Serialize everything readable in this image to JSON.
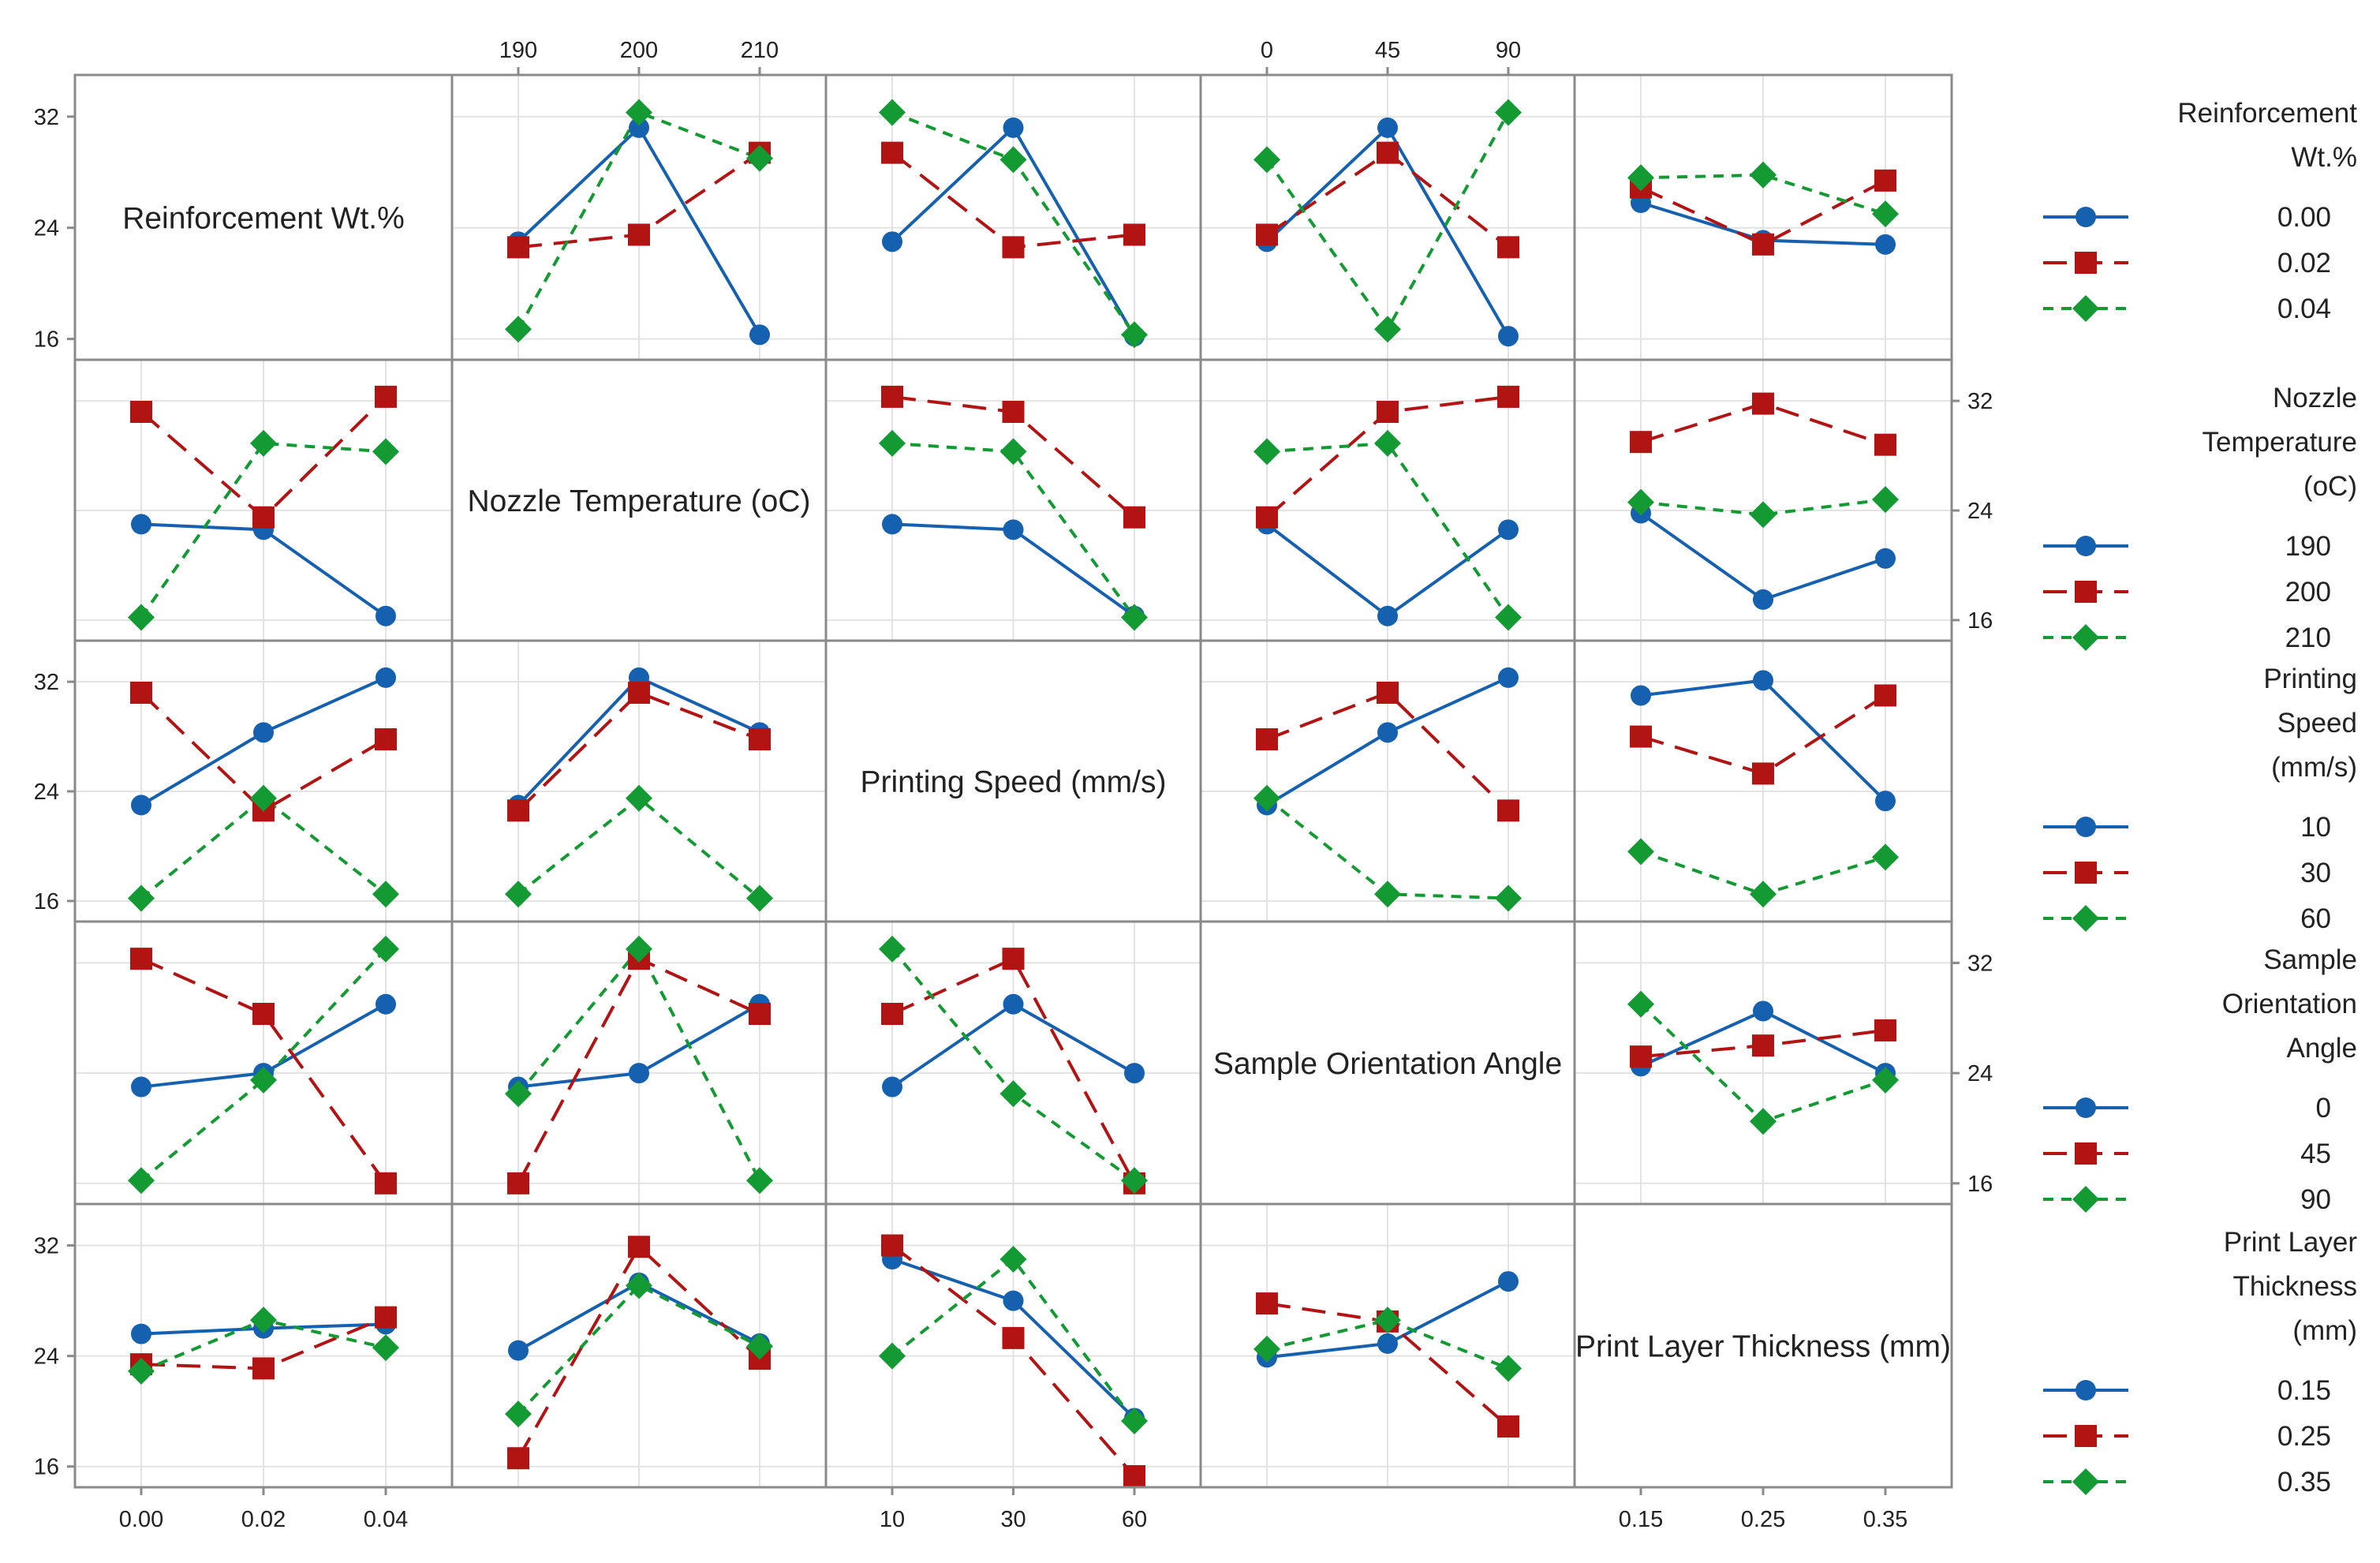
{
  "chart_data": {
    "type": "line",
    "layout": "interaction plot matrix",
    "factors": [
      {
        "name": "Reinforcement Wt.%",
        "legend_title": [
          "Reinforcement",
          "Wt.%"
        ],
        "levels": [
          "0.00",
          "0.02",
          "0.04"
        ]
      },
      {
        "name": "Nozzle Temperature (oC)",
        "legend_title": [
          "Nozzle",
          "Temperature",
          "(oC)"
        ],
        "levels": [
          "190",
          "200",
          "210"
        ]
      },
      {
        "name": "Printing Speed (mm/s)",
        "legend_title": [
          "Printing",
          "Speed",
          "(mm/s)"
        ],
        "levels": [
          "10",
          "30",
          "60"
        ]
      },
      {
        "name": "Sample Orientation Angle",
        "legend_title": [
          "Sample",
          "Orientation",
          "Angle"
        ],
        "levels": [
          "0",
          "45",
          "90"
        ]
      },
      {
        "name": "Print Layer Thickness (mm)",
        "legend_title": [
          "Print Layer",
          "Thickness",
          "(mm)"
        ],
        "levels": [
          "0.15",
          "0.25",
          "0.35"
        ]
      }
    ],
    "y_ticks": [
      16,
      24,
      32
    ],
    "ylim": [
      14.5,
      35
    ],
    "grid": true,
    "legend_position": "right",
    "series_styles": [
      {
        "color": "#1660b0",
        "marker": "circle",
        "dash": "solid"
      },
      {
        "color": "#b21414",
        "marker": "square",
        "dash": "long-dash"
      },
      {
        "color": "#139a33",
        "marker": "diamond",
        "dash": "short-dash"
      }
    ],
    "panels": [
      {
        "row": 0,
        "col": 1,
        "series": [
          [
            23.0,
            31.2,
            16.3
          ],
          [
            22.6,
            23.5,
            29.4
          ],
          [
            16.7,
            32.3,
            29.0
          ]
        ]
      },
      {
        "row": 0,
        "col": 2,
        "series": [
          [
            23.0,
            31.2,
            16.2
          ],
          [
            29.4,
            22.6,
            23.5
          ],
          [
            32.3,
            28.9,
            16.3
          ]
        ]
      },
      {
        "row": 0,
        "col": 3,
        "series": [
          [
            23.0,
            31.2,
            16.2
          ],
          [
            23.5,
            29.4,
            22.6
          ],
          [
            28.9,
            16.7,
            32.3
          ]
        ]
      },
      {
        "row": 0,
        "col": 4,
        "series": [
          [
            25.8,
            23.1,
            22.8
          ],
          [
            26.9,
            22.8,
            27.4
          ],
          [
            27.6,
            27.8,
            25.0
          ]
        ]
      },
      {
        "row": 1,
        "col": 0,
        "series": [
          [
            23.0,
            22.6,
            16.3
          ],
          [
            31.2,
            23.5,
            32.3
          ],
          [
            16.2,
            28.9,
            28.3
          ]
        ]
      },
      {
        "row": 1,
        "col": 2,
        "series": [
          [
            23.0,
            22.6,
            16.3
          ],
          [
            32.3,
            31.2,
            23.5
          ],
          [
            28.9,
            28.3,
            16.2
          ]
        ]
      },
      {
        "row": 1,
        "col": 3,
        "series": [
          [
            23.0,
            16.3,
            22.6
          ],
          [
            23.5,
            31.2,
            32.3
          ],
          [
            28.3,
            28.9,
            16.2
          ]
        ]
      },
      {
        "row": 1,
        "col": 4,
        "series": [
          [
            23.8,
            17.5,
            20.5
          ],
          [
            29.0,
            31.8,
            28.8
          ],
          [
            24.6,
            23.7,
            24.8
          ]
        ]
      },
      {
        "row": 2,
        "col": 0,
        "series": [
          [
            23.0,
            28.3,
            32.3
          ],
          [
            31.2,
            22.6,
            27.8
          ],
          [
            16.2,
            23.5,
            16.5
          ]
        ]
      },
      {
        "row": 2,
        "col": 1,
        "series": [
          [
            23.0,
            32.3,
            28.3
          ],
          [
            22.6,
            31.2,
            27.8
          ],
          [
            16.5,
            23.5,
            16.2
          ]
        ]
      },
      {
        "row": 2,
        "col": 3,
        "series": [
          [
            23.0,
            28.3,
            32.3
          ],
          [
            27.8,
            31.2,
            22.6
          ],
          [
            23.5,
            16.5,
            16.2
          ]
        ]
      },
      {
        "row": 2,
        "col": 4,
        "series": [
          [
            31.0,
            32.1,
            23.3
          ],
          [
            28.0,
            25.3,
            31.0
          ],
          [
            19.6,
            16.5,
            19.2
          ]
        ]
      },
      {
        "row": 3,
        "col": 0,
        "series": [
          [
            23.0,
            24.0,
            29.0
          ],
          [
            32.3,
            28.3,
            16.0
          ],
          [
            16.2,
            23.5,
            33.0
          ]
        ]
      },
      {
        "row": 3,
        "col": 1,
        "series": [
          [
            23.0,
            24.0,
            29.0
          ],
          [
            16.0,
            32.3,
            28.3
          ],
          [
            22.5,
            33.0,
            16.2
          ]
        ]
      },
      {
        "row": 3,
        "col": 2,
        "series": [
          [
            23.0,
            29.0,
            24.0
          ],
          [
            28.3,
            32.3,
            16.0
          ],
          [
            33.0,
            22.5,
            16.2
          ]
        ]
      },
      {
        "row": 3,
        "col": 4,
        "series": [
          [
            24.5,
            28.5,
            24.0
          ],
          [
            25.2,
            26.0,
            27.1
          ],
          [
            29.0,
            20.5,
            23.5
          ]
        ]
      },
      {
        "row": 4,
        "col": 0,
        "series": [
          [
            25.6,
            26.0,
            26.3
          ],
          [
            23.4,
            23.1,
            26.8
          ],
          [
            22.9,
            26.6,
            24.6
          ]
        ]
      },
      {
        "row": 4,
        "col": 1,
        "series": [
          [
            24.4,
            29.3,
            24.9
          ],
          [
            16.6,
            31.9,
            23.8
          ],
          [
            19.8,
            29.1,
            24.7
          ]
        ]
      },
      {
        "row": 4,
        "col": 2,
        "series": [
          [
            31.0,
            28.0,
            19.5
          ],
          [
            32.0,
            25.3,
            15.3
          ],
          [
            24.0,
            31.0,
            19.3
          ]
        ]
      },
      {
        "row": 4,
        "col": 3,
        "series": [
          [
            23.9,
            24.9,
            29.4
          ],
          [
            27.8,
            26.5,
            18.9
          ],
          [
            24.5,
            26.6,
            23.1
          ]
        ]
      }
    ]
  }
}
